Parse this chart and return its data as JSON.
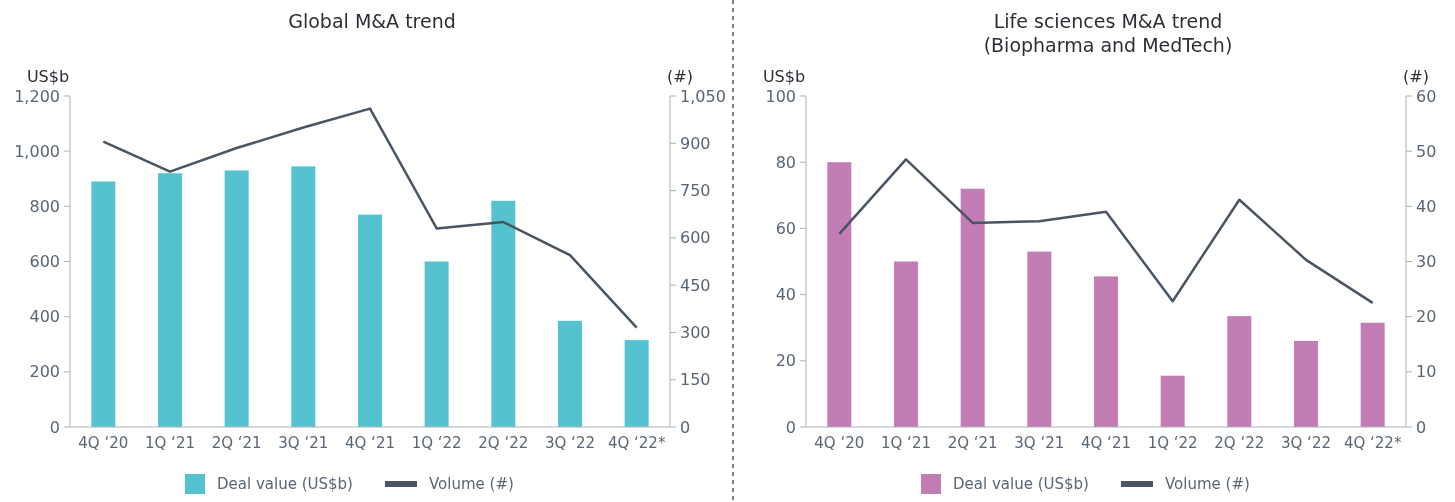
{
  "chart_data": [
    {
      "type": "bar",
      "title": "Global M&A trend",
      "ylabel": "US$b",
      "y2label": "(#)",
      "categories": [
        "4Q ‘20",
        "1Q ‘21",
        "2Q ‘21",
        "3Q ‘21",
        "4Q ‘21",
        "1Q ‘22",
        "2Q ‘22",
        "3Q ‘22",
        "4Q ‘22*"
      ],
      "series": [
        {
          "name": "Deal value (US$b)",
          "color": "#55c3cf",
          "values": [
            890,
            920,
            930,
            945,
            770,
            600,
            820,
            385,
            315
          ]
        },
        {
          "name": "Volume (#)",
          "type": "line",
          "axis": "y2",
          "color": "#4a5563",
          "values": [
            905,
            810,
            885,
            950,
            1010,
            630,
            650,
            545,
            315
          ]
        }
      ],
      "ylim": [
        0,
        1200
      ],
      "yticks": [
        0,
        200,
        400,
        600,
        800,
        {
          "value": 1000,
          "label": "1,000"
        },
        {
          "value": 1200,
          "label": "1,200"
        }
      ],
      "y2lim": [
        0,
        1050
      ],
      "y2ticks": [
        0,
        150,
        300,
        450,
        600,
        750,
        900,
        {
          "value": 1050,
          "label": "1,050"
        }
      ],
      "legend": "bottom",
      "grid": false
    },
    {
      "type": "bar",
      "title": "Life sciences M&A trend\n(Biopharma and MedTech)",
      "ylabel": "US$b",
      "y2label": "(#)",
      "categories": [
        "4Q ‘20",
        "1Q ‘21",
        "2Q ‘21",
        "3Q ‘21",
        "4Q ‘21",
        "1Q ‘22",
        "2Q ‘22",
        "3Q ‘22",
        "4Q ‘22*"
      ],
      "series": [
        {
          "name": "Deal value (US$b)",
          "color": "#c27db5",
          "values": [
            80,
            50,
            72,
            53,
            45.5,
            15.5,
            33.5,
            26,
            31.5
          ]
        },
        {
          "name": "Volume (#)",
          "type": "line",
          "axis": "y2",
          "color": "#4a5563",
          "values": [
            35,
            48.5,
            37,
            37.3,
            39,
            22.8,
            41.2,
            30.3,
            22.5
          ]
        }
      ],
      "ylim": [
        0,
        100
      ],
      "yticks": [
        0,
        20,
        40,
        60,
        80,
        100
      ],
      "y2lim": [
        0,
        60
      ],
      "y2ticks": [
        0,
        10,
        20,
        30,
        40,
        50,
        60
      ],
      "legend": "bottom",
      "grid": false
    }
  ]
}
